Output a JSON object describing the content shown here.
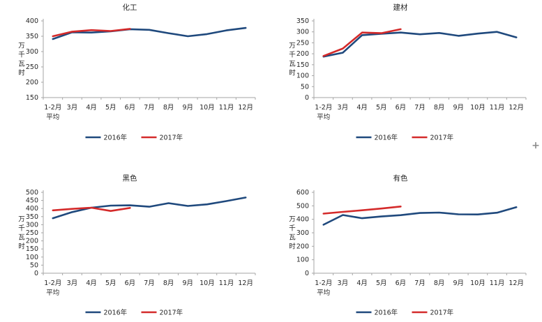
{
  "window": {
    "background": "#ffffff"
  },
  "cursor": {
    "plus_glyph": "+",
    "color": "#8c8c8c"
  },
  "style": {
    "axis_color": "#a6a6a6",
    "text_color": "#262626",
    "series_2016_color": "#1f497d",
    "series_2017_color": "#d42a2a"
  },
  "legend_labels": [
    "2016年",
    "2017年"
  ],
  "chart_data": [
    {
      "type": "line",
      "title": "化工",
      "ylabel": "万千瓦时",
      "xlabel": "",
      "ylim": [
        150,
        400
      ],
      "ystep": 50,
      "grid": false,
      "legend_position": "bottom",
      "categories": [
        "1-2月\n平均",
        "3月",
        "4月",
        "5月",
        "6月",
        "7月",
        "8月",
        "9月",
        "10月",
        "11月",
        "12月"
      ],
      "series": [
        {
          "name": "2016年",
          "color": "#1f497d",
          "values": [
            341,
            363,
            362,
            366,
            373,
            371,
            360,
            350,
            357,
            369,
            377
          ]
        },
        {
          "name": "2017年",
          "color": "#d42a2a",
          "values": [
            350,
            365,
            370,
            367,
            374
          ]
        }
      ]
    },
    {
      "type": "line",
      "title": "建材",
      "ylabel": "万千瓦时",
      "xlabel": "",
      "ylim": [
        0,
        350
      ],
      "ystep": 50,
      "grid": false,
      "legend_position": "bottom",
      "categories": [
        "1-2月\n平均",
        "3月",
        "4月",
        "5月",
        "6月",
        "7月",
        "8月",
        "9月",
        "10月",
        "11月",
        "12月"
      ],
      "series": [
        {
          "name": "2016年",
          "color": "#1f497d",
          "values": [
            187,
            205,
            285,
            291,
            297,
            289,
            295,
            282,
            292,
            300,
            275
          ]
        },
        {
          "name": "2017年",
          "color": "#d42a2a",
          "values": [
            190,
            224,
            297,
            294,
            312
          ]
        }
      ]
    },
    {
      "type": "line",
      "title": "黑色",
      "ylabel": "万千瓦时",
      "xlabel": "",
      "ylim": [
        0,
        500
      ],
      "ystep": 50,
      "grid": false,
      "legend_position": "bottom",
      "categories": [
        "1-2月\n平均",
        "3月",
        "4月",
        "5月",
        "6月",
        "7月",
        "8月",
        "9月",
        "10月",
        "11月",
        "12月"
      ],
      "series": [
        {
          "name": "2016年",
          "color": "#1f497d",
          "values": [
            340,
            378,
            405,
            418,
            420,
            411,
            433,
            416,
            426,
            446,
            468
          ]
        },
        {
          "name": "2017年",
          "color": "#d42a2a",
          "values": [
            389,
            398,
            405,
            385,
            404
          ]
        }
      ]
    },
    {
      "type": "line",
      "title": "有色",
      "ylabel": "万千瓦时",
      "xlabel": "",
      "ylim": [
        0,
        600
      ],
      "ystep": 100,
      "grid": false,
      "legend_position": "bottom",
      "categories": [
        "1-2月\n平均",
        "3月",
        "4月",
        "5月",
        "6月",
        "7月",
        "8月",
        "9月",
        "10月",
        "11月",
        "12月"
      ],
      "series": [
        {
          "name": "2016年",
          "color": "#1f497d",
          "values": [
            360,
            432,
            408,
            421,
            431,
            447,
            450,
            437,
            436,
            449,
            490
          ]
        },
        {
          "name": "2017年",
          "color": "#d42a2a",
          "values": [
            442,
            455,
            467,
            480,
            495
          ]
        }
      ]
    }
  ]
}
